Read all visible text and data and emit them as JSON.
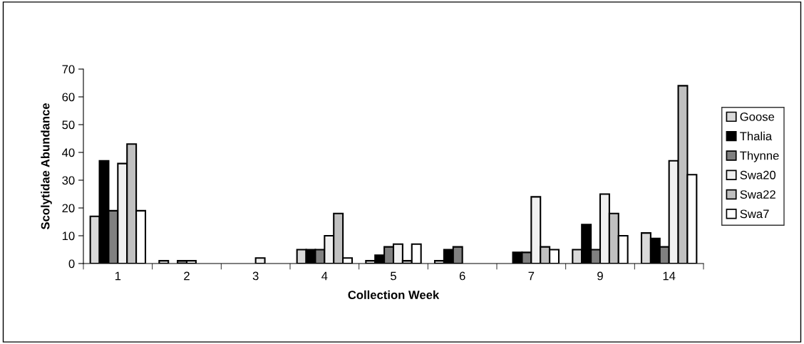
{
  "chart_data": {
    "type": "bar",
    "xlabel": "Collection Week",
    "ylabel": "Scolytidae Abundance",
    "categories": [
      "1",
      "2",
      "3",
      "4",
      "5",
      "6",
      "7",
      "9",
      "14"
    ],
    "series": [
      {
        "name": "Goose",
        "color": "#d9d9d9",
        "values": [
          17,
          1,
          0,
          5,
          1,
          1,
          0,
          5,
          11
        ]
      },
      {
        "name": "Thalia",
        "color": "#000000",
        "values": [
          37,
          0,
          0,
          5,
          3,
          5,
          4,
          14,
          9
        ]
      },
      {
        "name": "Thynne",
        "color": "#808080",
        "values": [
          19,
          1,
          0,
          5,
          6,
          6,
          4,
          5,
          6
        ]
      },
      {
        "name": "Swa20",
        "color": "#f0f0f0",
        "values": [
          36,
          1,
          2,
          10,
          7,
          0,
          24,
          25,
          37
        ]
      },
      {
        "name": "Swa22",
        "color": "#c0c0c0",
        "values": [
          43,
          0,
          0,
          18,
          1,
          0,
          6,
          18,
          64
        ]
      },
      {
        "name": "Swa7",
        "color": "#ffffff",
        "values": [
          19,
          0,
          0,
          2,
          7,
          0,
          5,
          10,
          32
        ]
      }
    ],
    "ylim": [
      0,
      70
    ],
    "yticks": [
      0,
      10,
      20,
      30,
      40,
      50,
      60,
      70
    ],
    "grid": false,
    "legend": "right"
  }
}
